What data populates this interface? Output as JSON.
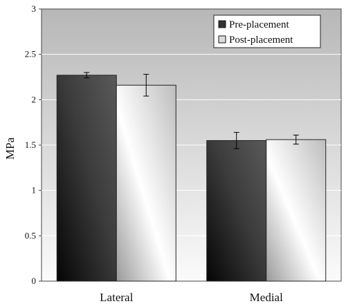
{
  "chart_data": {
    "type": "bar",
    "ylabel": "MPa",
    "xlabel": "",
    "ylim": [
      0,
      3
    ],
    "yticks": [
      "0",
      "0.5",
      "1",
      "1.5",
      "2",
      "2.5",
      "3"
    ],
    "categories": [
      "Lateral",
      "Medial"
    ],
    "grid": true,
    "legend_position": "top-right",
    "series": [
      {
        "name": "Pre-placement",
        "values": [
          2.27,
          1.55
        ],
        "errors": [
          0.03,
          0.09
        ],
        "color": "#3a3a3a"
      },
      {
        "name": "Post-placement",
        "values": [
          2.16,
          1.56
        ],
        "errors": [
          0.12,
          0.05
        ],
        "color": "#d8d8d8"
      }
    ]
  }
}
